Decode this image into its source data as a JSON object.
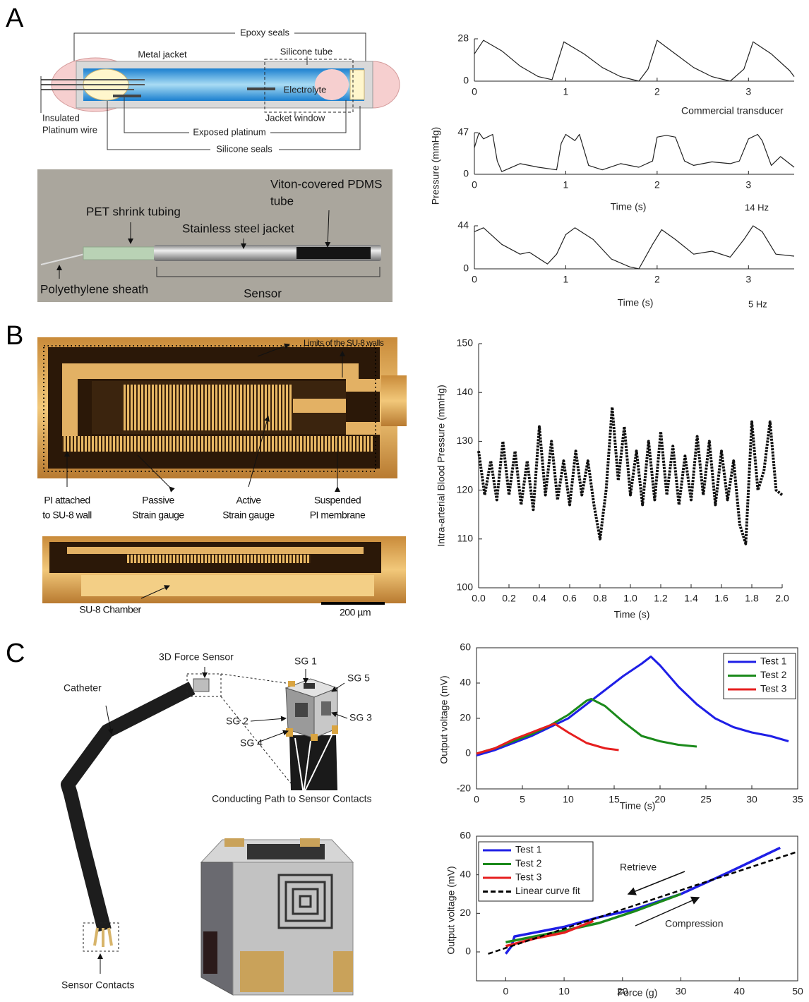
{
  "figure": {
    "panel_labels": [
      "A",
      "B",
      "C"
    ],
    "a_diagram": {
      "epoxy_seals": "Epoxy seals",
      "metal_jacket": "Metal jacket",
      "silicone_tube": "Silicone tube",
      "electrolyte": "Electrolyte",
      "insulated_platinum_wire": [
        "Insulated",
        "Platinum wire"
      ],
      "jacket_window": "Jacket window",
      "exposed_platinum": "Exposed platinum",
      "silicone_seals": "Silicone seals"
    },
    "a_photo": {
      "viton": [
        "Viton-covered PDMS",
        "tube"
      ],
      "pet": "PET shrink tubing",
      "steel": "Stainless steel jacket",
      "sheath": "Polyethylene sheath",
      "sensor": "Sensor"
    },
    "b_micrograph": {
      "limits": "Limits of the SU-8 walls",
      "pi_attached": [
        "PI attached",
        "to SU-8 wall"
      ],
      "passive": [
        "Passive",
        "Strain gauge"
      ],
      "active": [
        "Active",
        "Strain gauge"
      ],
      "suspended": [
        "Suspended",
        "PI membrane"
      ],
      "chamber": "SU-8 Chamber",
      "scale_bar": "200 µm"
    },
    "c_render": {
      "force_sensor": "3D Force Sensor",
      "sg1": "SG 1",
      "sg5": "SG 5",
      "catheter": "Catheter",
      "sg2": "SG 2",
      "sg3": "SG 3",
      "sg4": "SG 4",
      "conducting": "Conducting Path to Sensor Contacts",
      "contacts": "Sensor Contacts"
    }
  },
  "chart_data": [
    {
      "type": "line",
      "annotations": [
        "Commercial transducer"
      ],
      "x": [
        0,
        0.1,
        0.3,
        0.5,
        0.7,
        0.85,
        0.98,
        1.2,
        1.4,
        1.6,
        1.8,
        1.9,
        2.0,
        2.2,
        2.4,
        2.6,
        2.8,
        2.95,
        3.05,
        3.25,
        3.45,
        3.5
      ],
      "values": [
        18,
        27,
        20,
        10,
        3,
        1,
        26,
        18,
        9,
        3,
        0,
        8,
        27,
        18,
        9,
        3,
        0,
        8,
        26,
        18,
        7,
        3
      ],
      "color": "#222222",
      "xlim": [
        0,
        3.5
      ],
      "ylim": [
        0,
        28
      ],
      "xticks": [
        0,
        1,
        2,
        3
      ],
      "yticks": [
        0,
        28
      ]
    },
    {
      "type": "line",
      "xlabel": "Time (s)",
      "ylabel": "Pressure (mmHg)",
      "annotations": [
        "14 Hz"
      ],
      "x": [
        0,
        0.05,
        0.1,
        0.2,
        0.25,
        0.3,
        0.5,
        0.7,
        0.9,
        0.95,
        1.0,
        1.1,
        1.15,
        1.25,
        1.4,
        1.6,
        1.8,
        1.95,
        2.0,
        2.1,
        2.2,
        2.3,
        2.4,
        2.6,
        2.8,
        2.9,
        3.0,
        3.1,
        3.15,
        3.25,
        3.35,
        3.5
      ],
      "values": [
        30,
        47,
        40,
        45,
        15,
        3,
        12,
        8,
        5,
        35,
        45,
        38,
        45,
        10,
        5,
        12,
        8,
        15,
        42,
        44,
        42,
        15,
        10,
        14,
        12,
        15,
        40,
        45,
        38,
        10,
        20,
        8
      ],
      "color": "#222222",
      "xlim": [
        0,
        3.5
      ],
      "ylim": [
        0,
        47
      ],
      "xticks": [
        0,
        1,
        2,
        3
      ],
      "yticks": [
        0,
        47
      ]
    },
    {
      "type": "line",
      "xlabel": "Time (s)",
      "annotations": [
        "5 Hz"
      ],
      "x": [
        0,
        0.1,
        0.3,
        0.5,
        0.6,
        0.8,
        0.9,
        1.0,
        1.1,
        1.3,
        1.5,
        1.7,
        1.8,
        1.95,
        2.05,
        2.2,
        2.4,
        2.6,
        2.8,
        2.95,
        3.05,
        3.15,
        3.3,
        3.5
      ],
      "values": [
        38,
        42,
        25,
        15,
        17,
        5,
        15,
        35,
        42,
        30,
        10,
        2,
        0,
        25,
        40,
        30,
        15,
        18,
        12,
        30,
        44,
        38,
        15,
        13
      ],
      "color": "#222222",
      "xlim": [
        0,
        3.5
      ],
      "ylim": [
        0,
        44
      ],
      "xticks": [
        0,
        1,
        2,
        3
      ],
      "yticks": [
        0,
        44
      ]
    },
    {
      "type": "line",
      "linestyle": "dotted",
      "xlabel": "Time (s)",
      "ylabel": "Intra-arterial Blood Pressure (mmHg)",
      "x": [
        0,
        0.04,
        0.08,
        0.12,
        0.16,
        0.2,
        0.24,
        0.28,
        0.32,
        0.36,
        0.4,
        0.44,
        0.48,
        0.52,
        0.56,
        0.6,
        0.64,
        0.68,
        0.72,
        0.76,
        0.8,
        0.84,
        0.88,
        0.92,
        0.96,
        1,
        1.04,
        1.08,
        1.12,
        1.16,
        1.2,
        1.24,
        1.28,
        1.32,
        1.36,
        1.4,
        1.44,
        1.48,
        1.52,
        1.56,
        1.6,
        1.64,
        1.68,
        1.72,
        1.76,
        1.8,
        1.84,
        1.88,
        1.92,
        1.96,
        2
      ],
      "values": [
        128,
        119,
        126,
        118,
        130,
        119,
        128,
        117,
        126,
        116,
        133,
        119,
        130,
        118,
        126,
        117,
        128,
        119,
        126,
        117,
        110,
        120,
        137,
        122,
        133,
        119,
        128,
        117,
        130,
        118,
        132,
        119,
        129,
        117,
        127,
        118,
        131,
        119,
        130,
        117,
        128,
        118,
        126,
        113,
        109,
        134,
        120,
        124,
        134,
        120,
        119
      ],
      "color": "#111111",
      "xlim": [
        0,
        2
      ],
      "ylim": [
        100,
        150
      ],
      "xticks": [
        {
          "value": 0,
          "label": "0.0"
        },
        0.2,
        0.4,
        0.6,
        0.8,
        {
          "value": 1,
          "label": "1.0"
        },
        1.2,
        1.4,
        1.6,
        1.8,
        {
          "value": 2,
          "label": "2.0"
        }
      ],
      "yticks": [
        100,
        110,
        120,
        130,
        140,
        150
      ]
    },
    {
      "type": "line",
      "xlabel": "Time (s)",
      "ylabel": "Output voltage (mV)",
      "legend": "upper right",
      "series": [
        {
          "name": "Test 1",
          "color": "#1f1fe6",
          "x": [
            0,
            2,
            4,
            6,
            8,
            10,
            12,
            14,
            16,
            18,
            19,
            20,
            22,
            24,
            26,
            28,
            30,
            32,
            34
          ],
          "values": [
            -1,
            2,
            6,
            10,
            15,
            20,
            28,
            36,
            44,
            51,
            55,
            50,
            38,
            28,
            20,
            15,
            12,
            10,
            7
          ]
        },
        {
          "name": "Test 2",
          "color": "#1b8a1b",
          "x": [
            0,
            2,
            4,
            6,
            8,
            10,
            12,
            12.5,
            14,
            16,
            18,
            20,
            22,
            24
          ],
          "values": [
            0,
            3,
            7,
            11,
            16,
            22,
            30,
            31,
            27,
            18,
            10,
            7,
            5,
            4
          ]
        },
        {
          "name": "Test 3",
          "color": "#e61f1f",
          "x": [
            0,
            2,
            4,
            6,
            8,
            8.5,
            10,
            12,
            14,
            15.5
          ],
          "values": [
            0,
            3,
            8,
            12,
            16,
            17,
            12,
            6,
            3,
            2
          ]
        }
      ],
      "xlim": [
        0,
        35
      ],
      "ylim": [
        -20,
        60
      ],
      "xticks": [
        0,
        5,
        10,
        15,
        20,
        25,
        30,
        35
      ],
      "yticks": [
        -20,
        0,
        20,
        40,
        60
      ]
    },
    {
      "type": "line",
      "xlabel": "Force (g)",
      "ylabel": "Output voltage (mV)",
      "legend": "upper left",
      "annotations": [
        "Retrieve",
        "Compression"
      ],
      "series": [
        {
          "name": "Test 1",
          "color": "#1f1fe6",
          "x": [
            0,
            1,
            1.5,
            10,
            16,
            22,
            30,
            38,
            47
          ],
          "values": [
            -1,
            3,
            8,
            13,
            18,
            22,
            30,
            41,
            54
          ]
        },
        {
          "name": "Test 2",
          "color": "#1b8a1b",
          "x": [
            0,
            5,
            10,
            16,
            22,
            30
          ],
          "values": [
            5,
            8,
            11,
            15,
            21,
            30
          ]
        },
        {
          "name": "Test 3",
          "color": "#e61f1f",
          "x": [
            0,
            5,
            10,
            15
          ],
          "values": [
            3,
            7,
            10,
            16
          ]
        },
        {
          "name": "Linear curve fit",
          "color": "#000000",
          "linestyle": "dashed",
          "x": [
            -3,
            50
          ],
          "values": [
            -1,
            52
          ]
        }
      ],
      "xlim": [
        -5,
        50
      ],
      "ylim": [
        -15,
        60
      ],
      "xticks": [
        0,
        10,
        20,
        30,
        40,
        50
      ],
      "yticks": [
        0,
        20,
        40,
        60
      ]
    }
  ]
}
